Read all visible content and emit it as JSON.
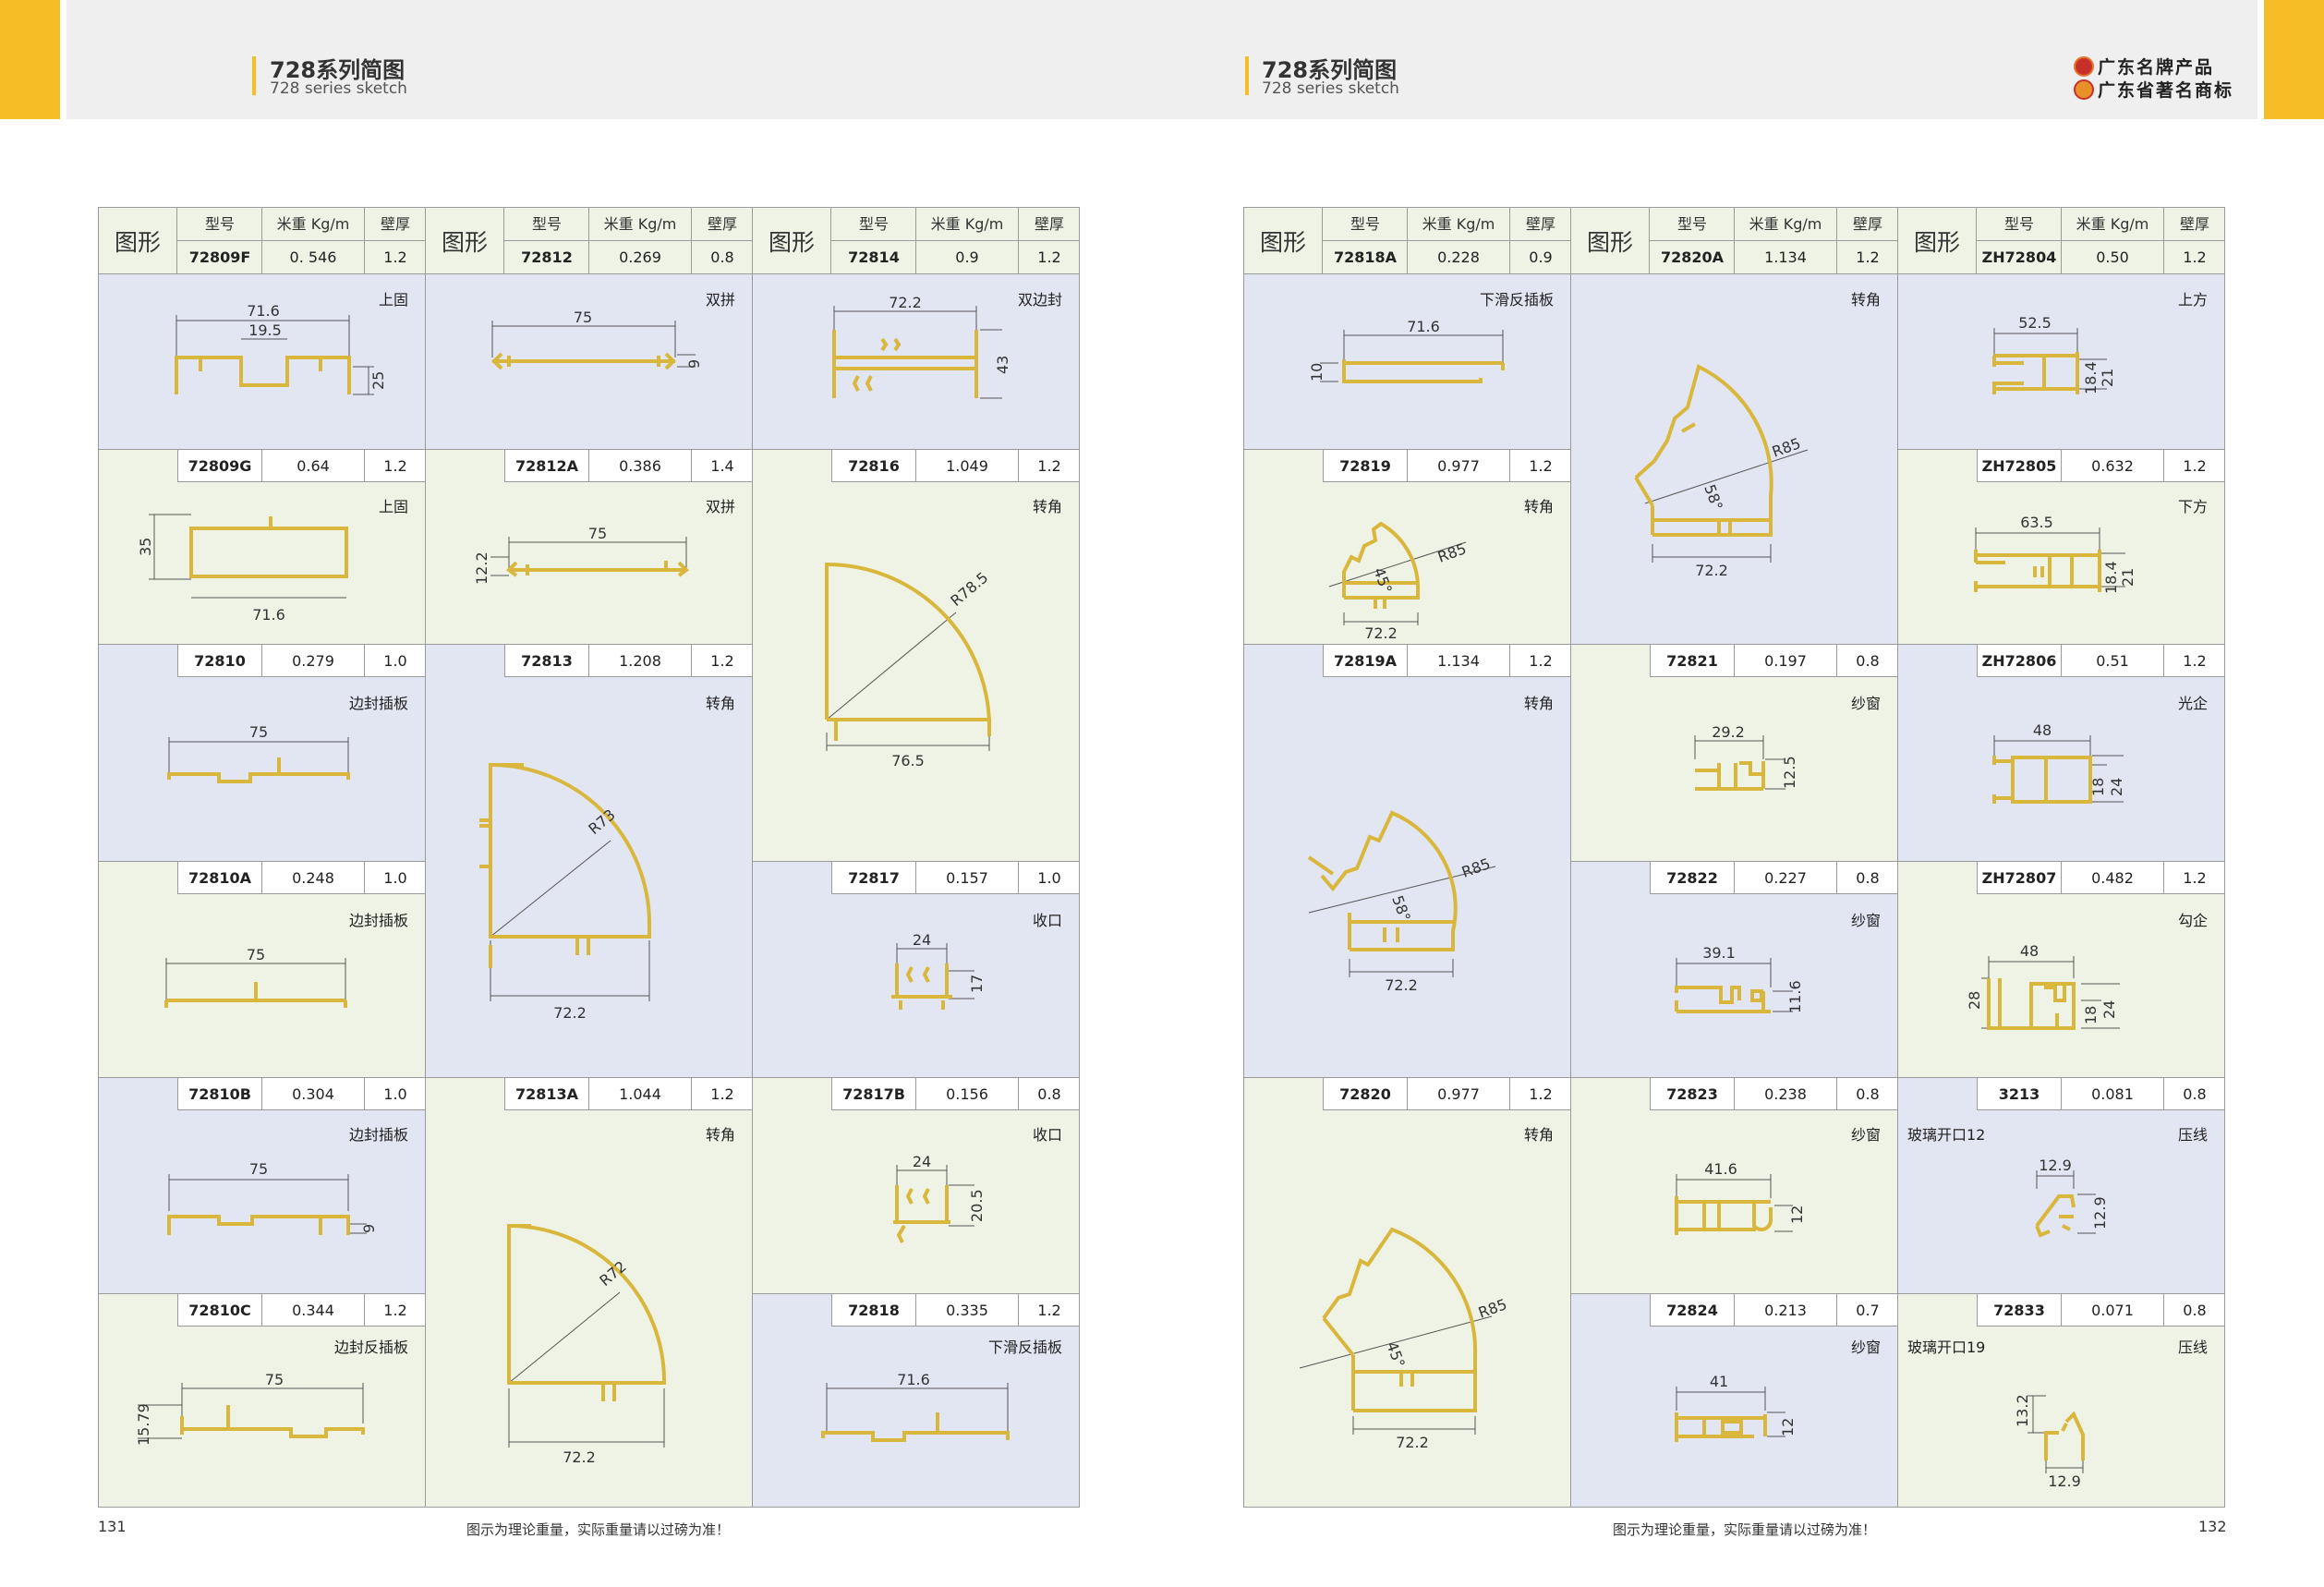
{
  "header": {
    "title_cn": "728系列简图",
    "title_en": "728 series sketch",
    "brand1": "广东名牌产品",
    "brand2": "广东省著名商标"
  },
  "table_headers": {
    "figure": "图形",
    "model": "型号",
    "weight": "米重 Kg/m",
    "thickness": "壁厚"
  },
  "columns": [
    {
      "model": "72809F",
      "weight": "0. 546",
      "thickness": "1.2",
      "cells": [
        {
          "code": "",
          "weight": "",
          "thick": "",
          "desc": "上固",
          "dims": [
            "71.6",
            "19.5",
            "25"
          ]
        },
        {
          "code": "72809G",
          "weight": "0.64",
          "thick": "1.2",
          "desc": "上固",
          "dims": [
            "35",
            "71.6"
          ]
        },
        {
          "code": "72810",
          "weight": "0.279",
          "thick": "1.0",
          "desc": "边封插板",
          "dims": [
            "75"
          ]
        },
        {
          "code": "72810A",
          "weight": "0.248",
          "thick": "1.0",
          "desc": "边封插板",
          "dims": [
            "75"
          ]
        },
        {
          "code": "72810B",
          "weight": "0.304",
          "thick": "1.0",
          "desc": "边封插板",
          "dims": [
            "75",
            "9"
          ]
        },
        {
          "code": "72810C",
          "weight": "0.344",
          "thick": "1.2",
          "desc": "边封反插板",
          "dims": [
            "75",
            "15.79"
          ]
        }
      ]
    },
    {
      "model": "72812",
      "weight": "0.269",
      "thickness": "0.8",
      "cells": [
        {
          "code": "",
          "weight": "",
          "thick": "",
          "desc": "双拼",
          "dims": [
            "75",
            "9"
          ]
        },
        {
          "code": "72812A",
          "weight": "0.386",
          "thick": "1.4",
          "desc": "双拼",
          "dims": [
            "75",
            "12.2"
          ]
        },
        {
          "code": "72813",
          "weight": "1.208",
          "thick": "1.2",
          "desc": "转角",
          "dims": [
            "R73",
            "72.2"
          ]
        },
        {
          "code": "72813A",
          "weight": "1.044",
          "thick": "1.2",
          "desc": "转角",
          "dims": [
            "R72",
            "72.2"
          ]
        }
      ]
    },
    {
      "model": "72814",
      "weight": "0.9",
      "thickness": "1.2",
      "cells": [
        {
          "code": "",
          "weight": "",
          "thick": "",
          "desc": "双边封",
          "dims": [
            "72.2",
            "43"
          ]
        },
        {
          "code": "72816",
          "weight": "1.049",
          "thick": "1.2",
          "desc": "转角",
          "dims": [
            "R78.5",
            "76.5"
          ]
        },
        {
          "code": "72817",
          "weight": "0.157",
          "thick": "1.0",
          "desc": "收口",
          "dims": [
            "24",
            "17"
          ]
        },
        {
          "code": "72817B",
          "weight": "0.156",
          "thick": "0.8",
          "desc": "收口",
          "dims": [
            "24",
            "20.5"
          ]
        },
        {
          "code": "72818",
          "weight": "0.335",
          "thick": "1.2",
          "desc": "下滑反插板",
          "dims": [
            "71.6"
          ]
        }
      ]
    },
    {
      "model": "72818A",
      "weight": "0.228",
      "thickness": "0.9",
      "cells": [
        {
          "code": "",
          "weight": "",
          "thick": "",
          "desc": "下滑反插板",
          "dims": [
            "71.6",
            "10"
          ]
        },
        {
          "code": "72819",
          "weight": "0.977",
          "thick": "1.2",
          "desc": "转角",
          "dims": [
            "45°",
            "R85",
            "72.2"
          ]
        },
        {
          "code": "72819A",
          "weight": "1.134",
          "thick": "1.2",
          "desc": "转角",
          "dims": [
            "58°",
            "R85",
            "72.2"
          ]
        },
        {
          "code": "72820",
          "weight": "0.977",
          "thick": "1.2",
          "desc": "转角",
          "dims": [
            "45°",
            "R85",
            "72.2"
          ]
        }
      ]
    },
    {
      "model": "72820A",
      "weight": "1.134",
      "thickness": "1.2",
      "cells": [
        {
          "code": "",
          "weight": "",
          "thick": "",
          "desc": "转角",
          "dims": [
            "58°",
            "R85",
            "72.2"
          ]
        },
        {
          "code": "72821",
          "weight": "0.197",
          "thick": "0.8",
          "desc": "纱窗",
          "dims": [
            "29.2",
            "12.5"
          ]
        },
        {
          "code": "72822",
          "weight": "0.227",
          "thick": "0.8",
          "desc": "纱窗",
          "dims": [
            "39.1",
            "11.6"
          ]
        },
        {
          "code": "72823",
          "weight": "0.238",
          "thick": "0.8",
          "desc": "纱窗",
          "dims": [
            "41.6",
            "12"
          ]
        },
        {
          "code": "72824",
          "weight": "0.213",
          "thick": "0.7",
          "desc": "纱窗",
          "dims": [
            "41",
            "12"
          ]
        }
      ]
    },
    {
      "model": "ZH72804",
      "weight": "0.50",
      "thickness": "1.2",
      "cells": [
        {
          "code": "",
          "weight": "",
          "thick": "",
          "desc": "上方",
          "glass": "",
          "dims": [
            "52.5",
            "18.4",
            "21"
          ]
        },
        {
          "code": "ZH72805",
          "weight": "0.632",
          "thick": "1.2",
          "desc": "下方",
          "glass": "",
          "dims": [
            "63.5",
            "18.4",
            "21"
          ]
        },
        {
          "code": "ZH72806",
          "weight": "0.51",
          "thick": "1.2",
          "desc": "光企",
          "glass": "",
          "dims": [
            "48",
            "18",
            "24"
          ]
        },
        {
          "code": "ZH72807",
          "weight": "0.482",
          "thick": "1.2",
          "desc": "勾企",
          "glass": "",
          "dims": [
            "48",
            "28",
            "18",
            "24"
          ]
        },
        {
          "code": "3213",
          "weight": "0.081",
          "thick": "0.8",
          "desc": "压线",
          "glass": "玻璃开口12",
          "dims": [
            "12.9",
            "12.9"
          ]
        },
        {
          "code": "72833",
          "weight": "0.071",
          "thick": "0.8",
          "desc": "压线",
          "glass": "玻璃开口19",
          "dims": [
            "13.2",
            "12.9"
          ]
        }
      ]
    }
  ],
  "footer": {
    "page_left": "131",
    "page_right": "132",
    "note": "图示为理论重量，实际重量请以过磅为准！"
  },
  "colors": {
    "accent": "#f6bd27",
    "profile": "#d9b73c",
    "blue_cell": "#e2e5f2",
    "green_cell": "#eef3e6"
  }
}
